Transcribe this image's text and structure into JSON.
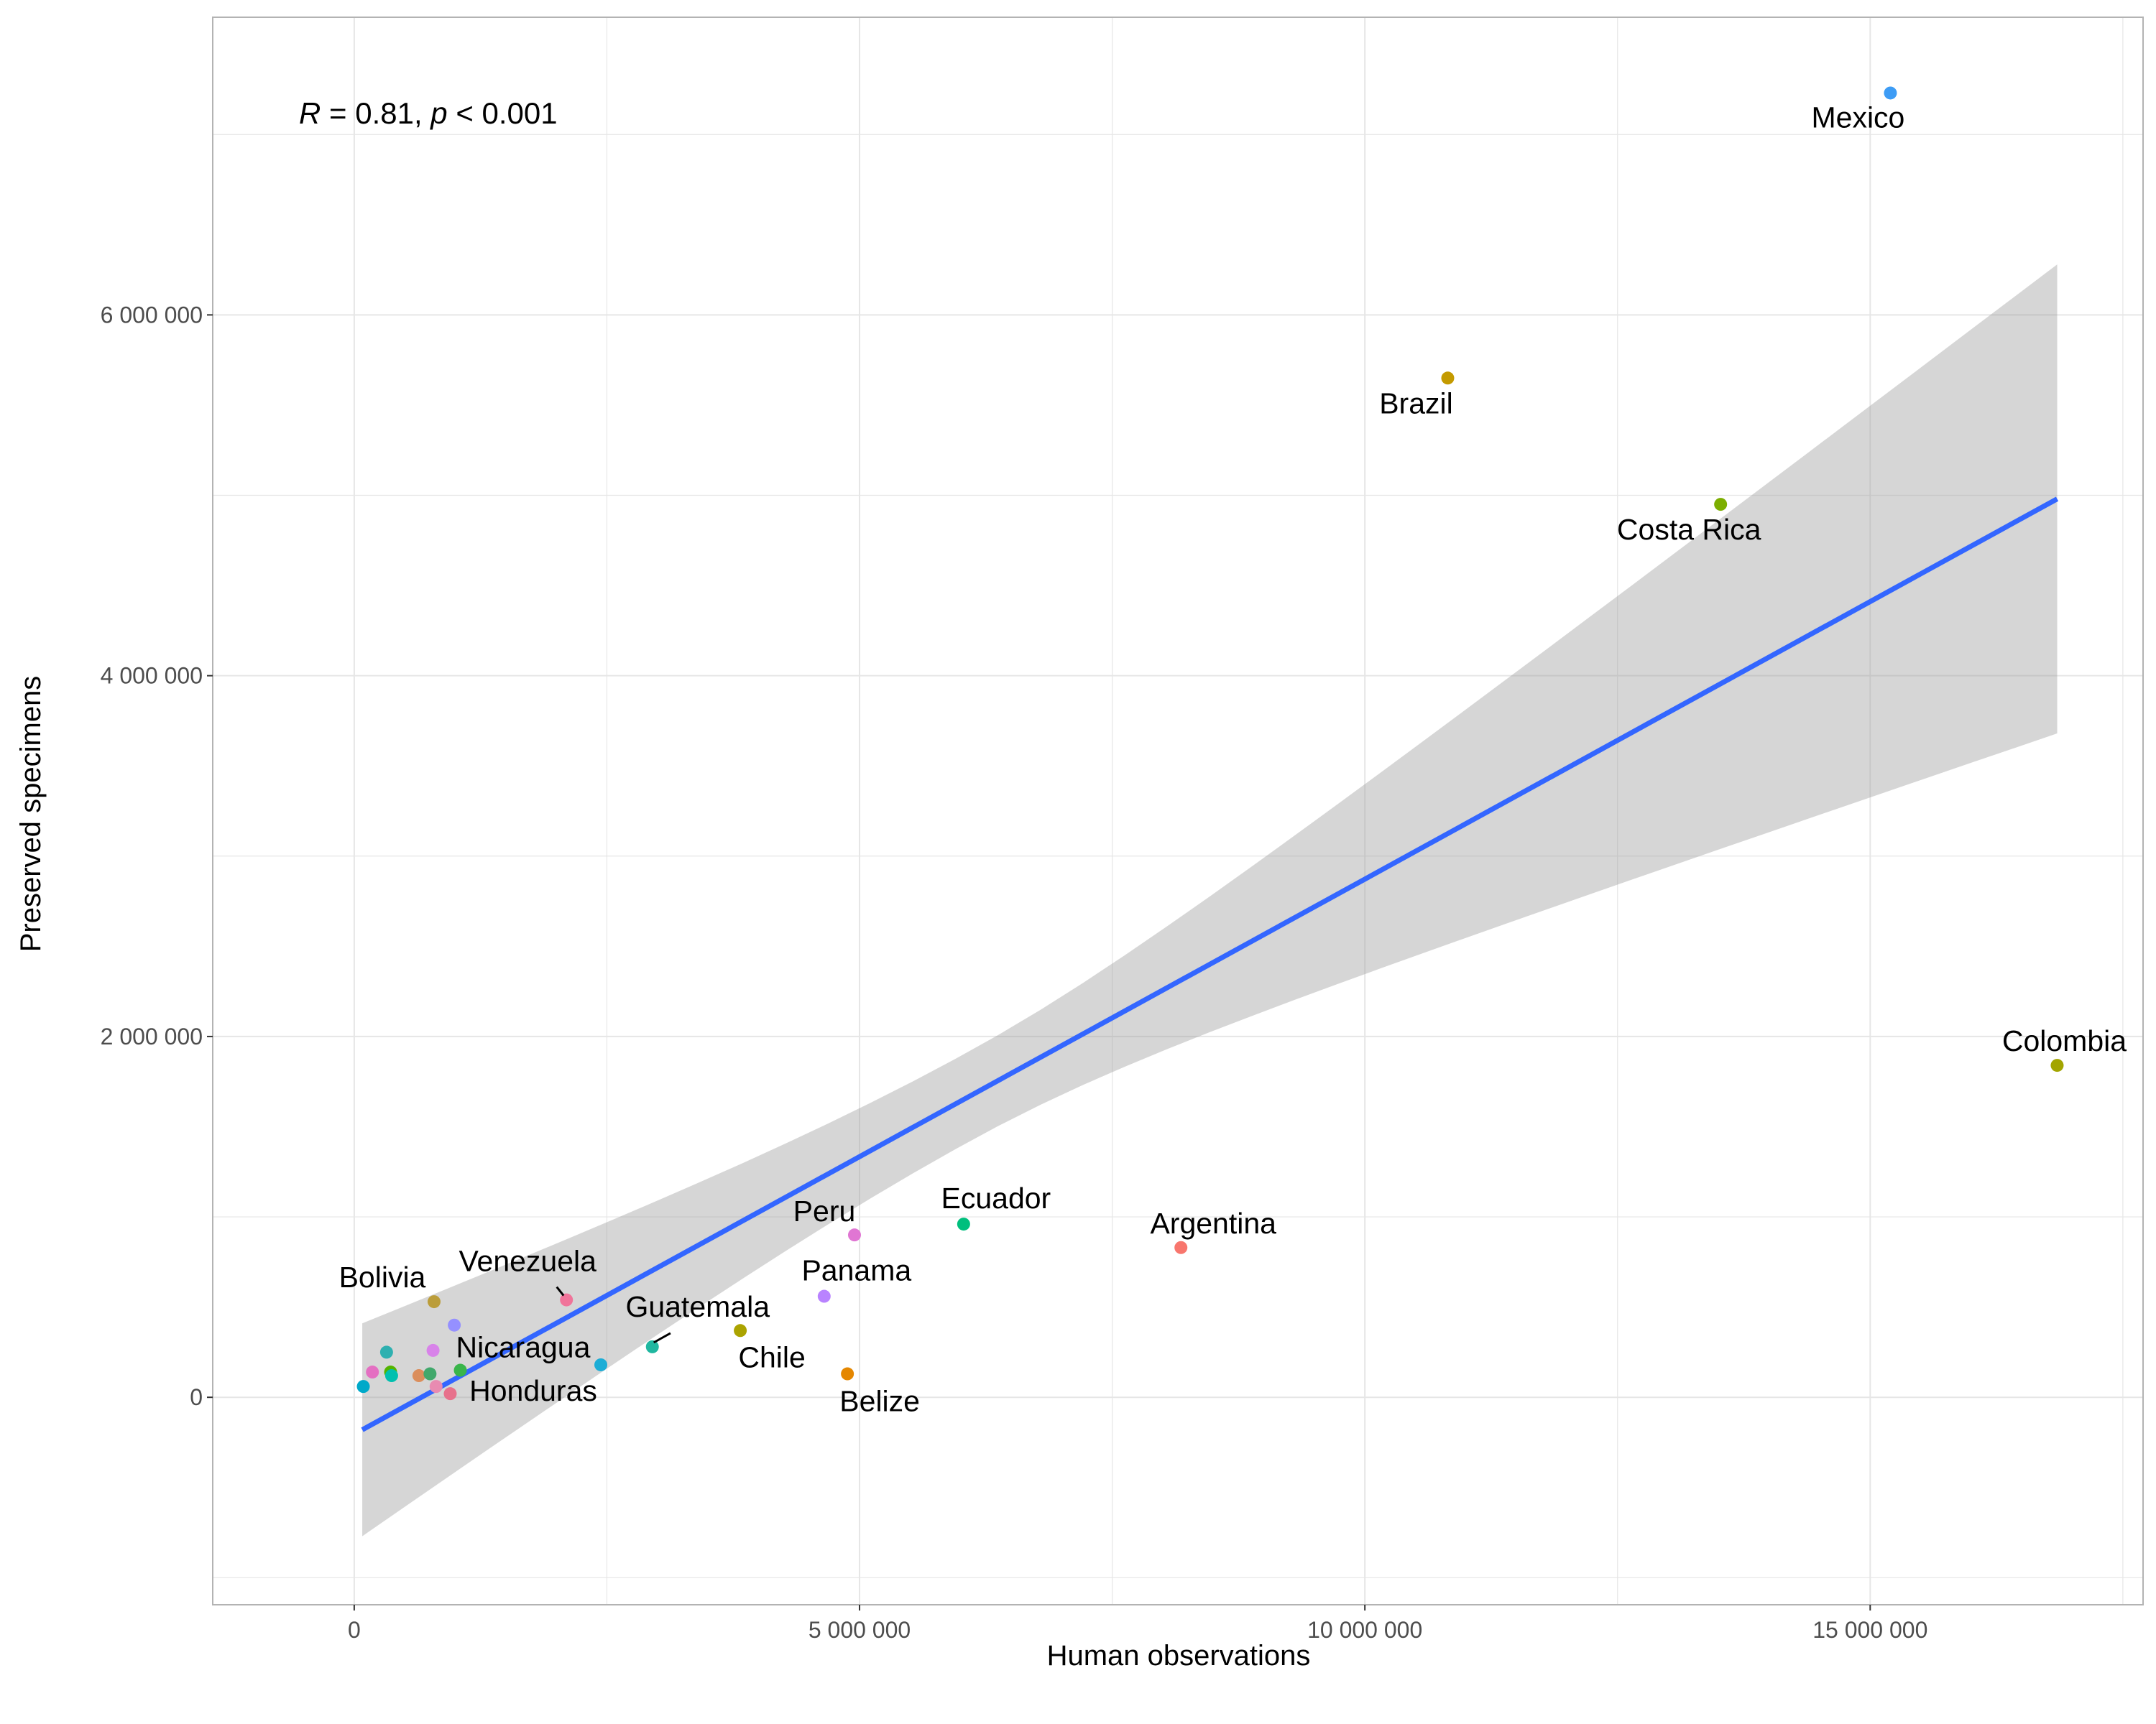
{
  "chart_data": {
    "type": "scatter",
    "xlabel": "Human observations",
    "ylabel": "Preserved specimens",
    "xlim": [
      -1400000,
      17700000
    ],
    "ylim": [
      -1150000,
      7650000
    ],
    "x_ticks": [
      0,
      5000000,
      10000000,
      15000000
    ],
    "x_tick_labels": [
      "0",
      "5 000 000",
      "10 000 000",
      "15 000 000"
    ],
    "y_ticks": [
      0,
      2000000,
      4000000,
      6000000
    ],
    "y_tick_labels": [
      "0",
      "2 000 000",
      "4 000 000",
      "6 000 000"
    ],
    "grid": true,
    "legend": "none",
    "annotation": {
      "r_symbol": "R",
      "r_text": " = 0.81, ",
      "p_symbol": "p",
      "p_text": " < 0.001"
    },
    "regression": {
      "color": "#3366FF",
      "x_range": [
        80000,
        16850000
      ],
      "line_y": [
        -180000,
        4980000
      ],
      "ci_lower": [
        -770000,
        3680000
      ],
      "ci_upper": [
        410000,
        6280000
      ]
    },
    "points": [
      {
        "x": 15200000,
        "y": 7230000,
        "label": "Mexico",
        "color": "#3D9CF5"
      },
      {
        "x": 10820000,
        "y": 5650000,
        "label": "Brazil",
        "color": "#C49A00"
      },
      {
        "x": 13520000,
        "y": 4950000,
        "label": "Costa Rica",
        "color": "#7CAE00"
      },
      {
        "x": 16850000,
        "y": 1840000,
        "label": "Colombia",
        "color": "#A3A500"
      },
      {
        "x": 8180000,
        "y": 830000,
        "label": "Argentina",
        "color": "#F8766D"
      },
      {
        "x": 6030000,
        "y": 960000,
        "label": "Ecuador",
        "color": "#00BF7D"
      },
      {
        "x": 4950000,
        "y": 900000,
        "label": "Peru",
        "color": "#E076D3"
      },
      {
        "x": 4650000,
        "y": 560000,
        "label": "Panama",
        "color": "#B983FF"
      },
      {
        "x": 3820000,
        "y": 370000,
        "label": "Chile",
        "color": "#ABA300"
      },
      {
        "x": 4880000,
        "y": 130000,
        "label": "Belize",
        "color": "#E58700"
      },
      {
        "x": 2950000,
        "y": 280000,
        "label": "Guatemala",
        "color": "#1FB7A0"
      },
      {
        "x": 2100000,
        "y": 540000,
        "label": "Venezuela",
        "color": "#F0749A"
      },
      {
        "x": 790000,
        "y": 530000,
        "label": "Bolivia",
        "color": "#BB9D3A"
      },
      {
        "x": 1050000,
        "y": 150000,
        "label": "Nicaragua",
        "color": "#39B54A"
      },
      {
        "x": 2440000,
        "y": 180000,
        "label": "Honduras",
        "color": "#1CADD6"
      },
      {
        "x": 990000,
        "y": 400000,
        "label": "",
        "color": "#9590FF"
      },
      {
        "x": 780000,
        "y": 260000,
        "label": "",
        "color": "#D883E9"
      },
      {
        "x": 320000,
        "y": 250000,
        "label": "",
        "color": "#2EB0B0"
      },
      {
        "x": 360000,
        "y": 140000,
        "label": "",
        "color": "#53B400"
      },
      {
        "x": 370000,
        "y": 120000,
        "label": "",
        "color": "#00C0AF"
      },
      {
        "x": 180000,
        "y": 140000,
        "label": "",
        "color": "#E46FC2"
      },
      {
        "x": 640000,
        "y": 120000,
        "label": "",
        "color": "#DB8E5C"
      },
      {
        "x": 750000,
        "y": 130000,
        "label": "",
        "color": "#40A86B"
      },
      {
        "x": 810000,
        "y": 60000,
        "label": "",
        "color": "#E88BB1"
      },
      {
        "x": 950000,
        "y": 20000,
        "label": "",
        "color": "#E7718C"
      },
      {
        "x": 90000,
        "y": 60000,
        "label": "",
        "color": "#00A9C9"
      }
    ]
  }
}
